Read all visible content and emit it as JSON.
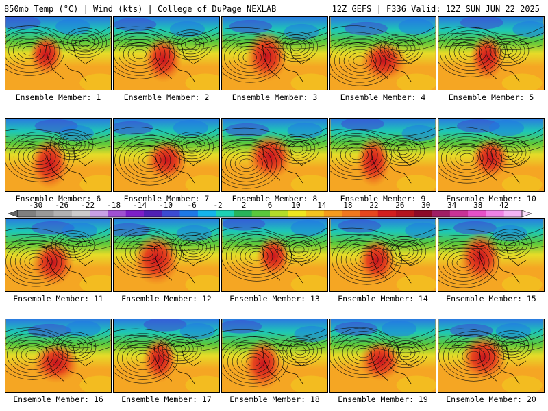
{
  "header": {
    "left": "850mb Temp (°C) | Wind (kts) | College of DuPage NEXLAB",
    "right": "12Z GEFS | F336 Valid: 12Z SUN JUN 22 2025"
  },
  "panels": [
    {
      "label": "Ensemble Member: 1"
    },
    {
      "label": "Ensemble Member: 2"
    },
    {
      "label": "Ensemble Member: 3"
    },
    {
      "label": "Ensemble Member: 4"
    },
    {
      "label": "Ensemble Member: 5"
    },
    {
      "label": "Ensemble Member: 6"
    },
    {
      "label": "Ensemble Member: 7"
    },
    {
      "label": "Ensemble Member: 8"
    },
    {
      "label": "Ensemble Member: 9"
    },
    {
      "label": "Ensemble Member: 10"
    },
    {
      "label": "Ensemble Member: 11"
    },
    {
      "label": "Ensemble Member: 12"
    },
    {
      "label": "Ensemble Member: 13"
    },
    {
      "label": "Ensemble Member: 14"
    },
    {
      "label": "Ensemble Member: 15"
    },
    {
      "label": "Ensemble Member: 16"
    },
    {
      "label": "Ensemble Member: 17"
    },
    {
      "label": "Ensemble Member: 18"
    },
    {
      "label": "Ensemble Member: 19"
    },
    {
      "label": "Ensemble Member: 20"
    }
  ],
  "colorbar": {
    "labels": [
      "-30",
      "-26",
      "-22",
      "-18",
      "-14",
      "-10",
      "-6",
      "-2",
      "2",
      "6",
      "10",
      "14",
      "18",
      "22",
      "26",
      "30",
      "34",
      "38",
      "42"
    ],
    "colors": [
      "#7f7f7f",
      "#999999",
      "#b2b2b2",
      "#cccccc",
      "#c8a0e6",
      "#a050d2",
      "#7d1ec8",
      "#5020b4",
      "#3c4bd2",
      "#1e78e6",
      "#14b4eb",
      "#1ed2b4",
      "#28b45a",
      "#5ac83c",
      "#b4dc28",
      "#f0e61e",
      "#f5c31e",
      "#f59b1e",
      "#f0781e",
      "#e6461e",
      "#d21e1e",
      "#b4141e",
      "#8c0a28",
      "#a01e64",
      "#c83296",
      "#e650c8",
      "#f082e6",
      "#f5b4f5"
    ]
  }
}
